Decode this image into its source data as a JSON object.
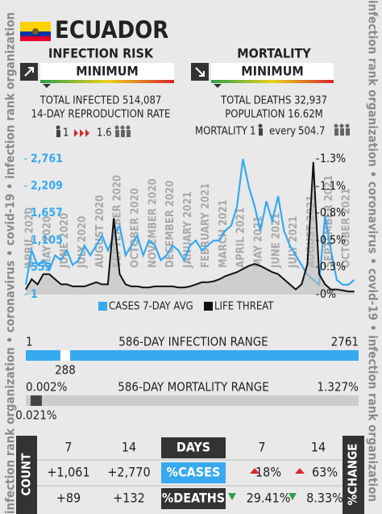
{
  "side_text": "infection rank organization • coronavirus • covid-19 • infection rank organization",
  "header": {
    "country": "ECUADOR"
  },
  "infection": {
    "title": "INFECTION RISK",
    "level": "MINIMUM",
    "total": "TOTAL INFECTED 514,087",
    "rate_label": "14-DAY REPRODUCTION RATE",
    "rate_from": "1",
    "rate_to": "1.6"
  },
  "mortality": {
    "title": "MORTALITY",
    "level": "MINIMUM",
    "total": "TOTAL DEATHS 32,937",
    "population": "POPULATION 16.62M",
    "ratio_label": "MORTALITY",
    "ratio_from": "1",
    "ratio_word": "every",
    "ratio_to": "504.7"
  },
  "chart_data": {
    "type": "line",
    "categories": [
      "APRIL 2020",
      null,
      null,
      "MAY 2020",
      null,
      null,
      "JUNE 2020",
      null,
      null,
      "JULY 2020",
      null,
      null,
      "AUGUST 2020",
      null,
      null,
      "SEPTEMBER 2020",
      null,
      null,
      "OCTOBER 2020",
      null,
      null,
      "NOVEMBER 2020",
      null,
      null,
      "DECEMBER 2020",
      null,
      null,
      "JANUARY 2021",
      null,
      null,
      "FEBRUARY 2021",
      null,
      null,
      "MARCH 2021",
      null,
      null,
      "APRIL 2021",
      null,
      null,
      "MAY 2021",
      null,
      null,
      "JUNE 2021",
      null,
      null,
      "JULY 2021",
      null,
      null,
      "AUGUST 2021",
      null,
      null,
      "SEPTEMBER 2021",
      null,
      null,
      "OCTOBER 2021",
      null,
      null
    ],
    "series": [
      {
        "name": "CASES 7-DAY AVG",
        "color": "#36a9f0",
        "values": [
          200,
          900,
          600,
          700,
          500,
          800,
          700,
          900,
          600,
          700,
          1000,
          800,
          1000,
          1200,
          900,
          1200,
          1400,
          800,
          1000,
          1200,
          800,
          1100,
          1000,
          700,
          800,
          1000,
          900,
          700,
          1000,
          1100,
          900,
          1000,
          1100,
          1100,
          1300,
          1400,
          1800,
          2761,
          2200,
          1800,
          1300,
          1900,
          1500,
          2000,
          1300,
          1000,
          800,
          600,
          400,
          300,
          200,
          1600,
          900,
          300,
          200,
          200,
          300
        ]
      },
      {
        "name": "LIFE THREAT",
        "color": "#111111",
        "axis": "y2",
        "values": [
          0.05,
          0.15,
          0.1,
          0.2,
          0.2,
          0.15,
          0.1,
          0.1,
          0.08,
          0.08,
          0.08,
          0.1,
          0.12,
          0.1,
          0.1,
          0.75,
          0.2,
          0.1,
          0.08,
          0.08,
          0.07,
          0.07,
          0.08,
          0.08,
          0.08,
          0.08,
          0.07,
          0.07,
          0.08,
          0.1,
          0.12,
          0.12,
          0.13,
          0.15,
          0.18,
          0.2,
          0.22,
          0.25,
          0.28,
          0.3,
          0.28,
          0.25,
          0.22,
          0.2,
          0.15,
          0.1,
          0.05,
          0.1,
          0.3,
          1.3,
          0.2,
          0.1,
          0.05,
          0.05,
          0.04,
          0.03,
          0.03
        ]
      }
    ],
    "ylim": [
      1,
      2761
    ],
    "yticks": [
      1,
      {
        "value": 553,
        "label": "553"
      },
      {
        "value": 1105,
        "label": "1,105"
      },
      {
        "value": 1657,
        "label": "1,657"
      },
      {
        "value": 2209,
        "label": "2,209"
      },
      {
        "value": 2761,
        "label": "2,761"
      }
    ],
    "y2lim": [
      0,
      1.33
    ],
    "y2ticks": [
      {
        "value": 0,
        "label": "0%"
      },
      {
        "value": 0.27,
        "label": "0.3%"
      },
      {
        "value": 0.53,
        "label": "0.5%"
      },
      {
        "value": 0.8,
        "label": "0.8%"
      },
      {
        "value": 1.06,
        "label": "1.1%"
      },
      {
        "value": 1.33,
        "label": "1.3%"
      }
    ]
  },
  "infection_range": {
    "title": "586-DAY INFECTION RANGE",
    "values": [
      1,
      2761,
      288
    ]
  },
  "mortality_range": {
    "title": "586-DAY MORTALITY RANGE",
    "values": [
      0.002,
      1.327,
      0.021
    ],
    "value_labels": [
      "0.002%",
      "1.327%",
      "0.021%"
    ]
  },
  "table": {
    "count_label": "COUNT",
    "change_label": "%CHANGE",
    "header": [
      "7",
      "14",
      "DAYS",
      "7",
      "14"
    ],
    "rows": [
      [
        "+1,061",
        "+2,770",
        "%CASES",
        "18%",
        "63%"
      ],
      [
        "+89",
        "+132",
        "%DEATHS",
        "29.41%",
        "8.33%"
      ]
    ]
  }
}
